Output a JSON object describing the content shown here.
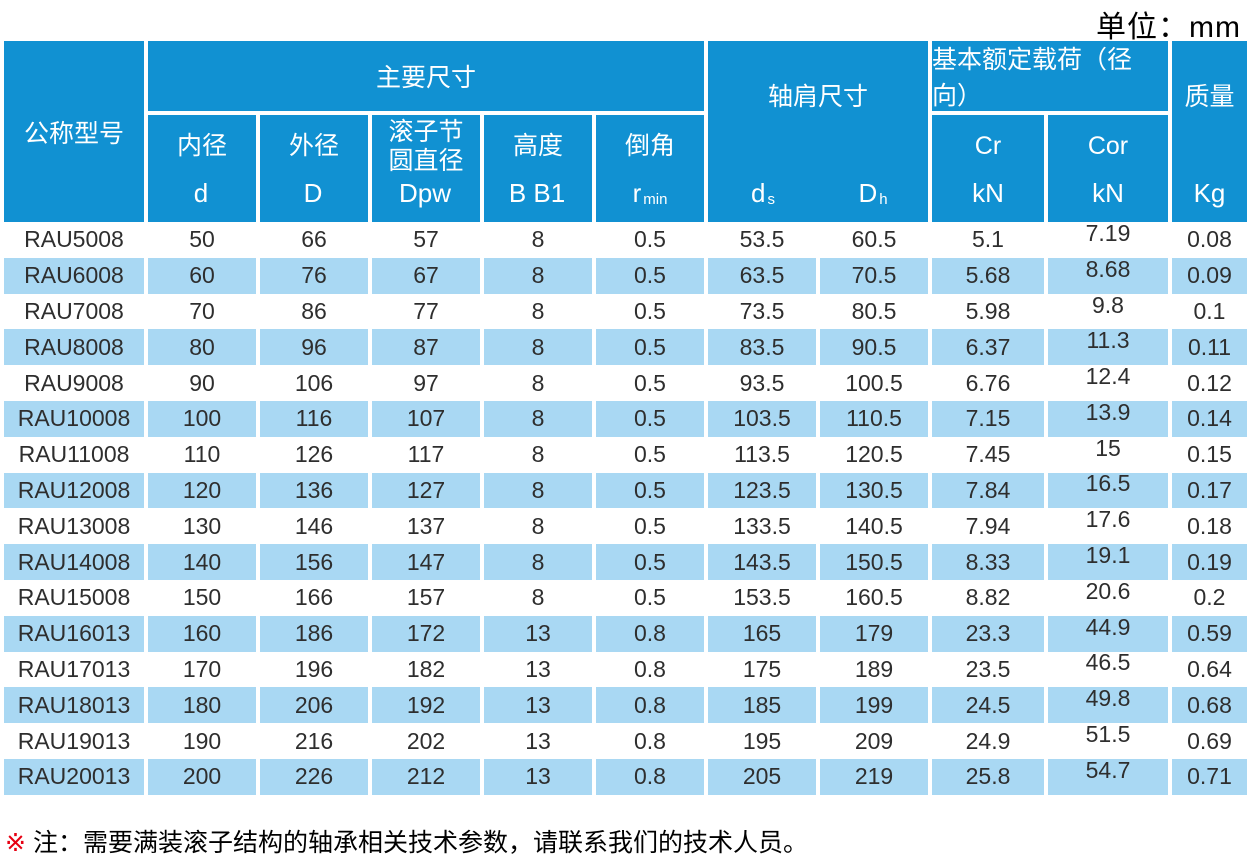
{
  "unit_label": "单位：mm",
  "colors": {
    "header_blue": "#1191d2",
    "row_blue": "#a9d8f3",
    "note_red": "#e60012"
  },
  "header": {
    "model": "公称型号",
    "main_dims_group": "主要尺寸",
    "shoulder_group": "轴肩尺寸",
    "load_group": "基本额定载荷（径向）",
    "mass": "质量",
    "mass_unit": "Kg",
    "sub": [
      {
        "name": "内径",
        "sym": "d",
        "sub": ""
      },
      {
        "name": "外径",
        "sym": "D",
        "sub": ""
      },
      {
        "name": "滚子节圆直径",
        "sym": "Dpw",
        "sub": ""
      },
      {
        "name": "高度",
        "sym": "B B1",
        "sub": ""
      },
      {
        "name": "倒角",
        "sym": "r",
        "sub": "min"
      }
    ],
    "shoulder_sub": [
      {
        "sym": "d",
        "sub": "s"
      },
      {
        "sym": "D",
        "sub": "h"
      }
    ],
    "load_sub": [
      {
        "name": "Cr",
        "unit": "kN"
      },
      {
        "name": "Cor",
        "unit": "kN"
      }
    ]
  },
  "rows": [
    {
      "model": "RAU5008",
      "d": "50",
      "D": "66",
      "dpw": "57",
      "b": "8",
      "r": "0.5",
      "ds": "53.5",
      "dh": "60.5",
      "cr": "5.1",
      "cor": "7.19",
      "kg": "0.08"
    },
    {
      "model": "RAU6008",
      "d": "60",
      "D": "76",
      "dpw": "67",
      "b": "8",
      "r": "0.5",
      "ds": "63.5",
      "dh": "70.5",
      "cr": "5.68",
      "cor": "8.68",
      "kg": "0.09"
    },
    {
      "model": "RAU7008",
      "d": "70",
      "D": "86",
      "dpw": "77",
      "b": "8",
      "r": "0.5",
      "ds": "73.5",
      "dh": "80.5",
      "cr": "5.98",
      "cor": "9.8",
      "kg": "0.1"
    },
    {
      "model": "RAU8008",
      "d": "80",
      "D": "96",
      "dpw": "87",
      "b": "8",
      "r": "0.5",
      "ds": "83.5",
      "dh": "90.5",
      "cr": "6.37",
      "cor": "11.3",
      "kg": "0.11"
    },
    {
      "model": "RAU9008",
      "d": "90",
      "D": "106",
      "dpw": "97",
      "b": "8",
      "r": "0.5",
      "ds": "93.5",
      "dh": "100.5",
      "cr": "6.76",
      "cor": "12.4",
      "kg": "0.12"
    },
    {
      "model": "RAU10008",
      "d": "100",
      "D": "116",
      "dpw": "107",
      "b": "8",
      "r": "0.5",
      "ds": "103.5",
      "dh": "110.5",
      "cr": "7.15",
      "cor": "13.9",
      "kg": "0.14"
    },
    {
      "model": "RAU11008",
      "d": "110",
      "D": "126",
      "dpw": "117",
      "b": "8",
      "r": "0.5",
      "ds": "113.5",
      "dh": "120.5",
      "cr": "7.45",
      "cor": "15",
      "kg": "0.15"
    },
    {
      "model": "RAU12008",
      "d": "120",
      "D": "136",
      "dpw": "127",
      "b": "8",
      "r": "0.5",
      "ds": "123.5",
      "dh": "130.5",
      "cr": "7.84",
      "cor": "16.5",
      "kg": "0.17"
    },
    {
      "model": "RAU13008",
      "d": "130",
      "D": "146",
      "dpw": "137",
      "b": "8",
      "r": "0.5",
      "ds": "133.5",
      "dh": "140.5",
      "cr": "7.94",
      "cor": "17.6",
      "kg": "0.18"
    },
    {
      "model": "RAU14008",
      "d": "140",
      "D": "156",
      "dpw": "147",
      "b": "8",
      "r": "0.5",
      "ds": "143.5",
      "dh": "150.5",
      "cr": "8.33",
      "cor": "19.1",
      "kg": "0.19"
    },
    {
      "model": "RAU15008",
      "d": "150",
      "D": "166",
      "dpw": "157",
      "b": "8",
      "r": "0.5",
      "ds": "153.5",
      "dh": "160.5",
      "cr": "8.82",
      "cor": "20.6",
      "kg": "0.2"
    },
    {
      "model": "RAU16013",
      "d": "160",
      "D": "186",
      "dpw": "172",
      "b": "13",
      "r": "0.8",
      "ds": "165",
      "dh": "179",
      "cr": "23.3",
      "cor": "44.9",
      "kg": "0.59"
    },
    {
      "model": "RAU17013",
      "d": "170",
      "D": "196",
      "dpw": "182",
      "b": "13",
      "r": "0.8",
      "ds": "175",
      "dh": "189",
      "cr": "23.5",
      "cor": "46.5",
      "kg": "0.64"
    },
    {
      "model": "RAU18013",
      "d": "180",
      "D": "206",
      "dpw": "192",
      "b": "13",
      "r": "0.8",
      "ds": "185",
      "dh": "199",
      "cr": "24.5",
      "cor": "49.8",
      "kg": "0.68"
    },
    {
      "model": "RAU19013",
      "d": "190",
      "D": "216",
      "dpw": "202",
      "b": "13",
      "r": "0.8",
      "ds": "195",
      "dh": "209",
      "cr": "24.9",
      "cor": "51.5",
      "kg": "0.69"
    },
    {
      "model": "RAU20013",
      "d": "200",
      "D": "226",
      "dpw": "212",
      "b": "13",
      "r": "0.8",
      "ds": "205",
      "dh": "219",
      "cr": "25.8",
      "cor": "54.7",
      "kg": "0.71"
    }
  ],
  "note": {
    "marker": "※",
    "text": "注：需要满装滚子结构的轴承相关技术参数，请联系我们的技术人员。"
  }
}
